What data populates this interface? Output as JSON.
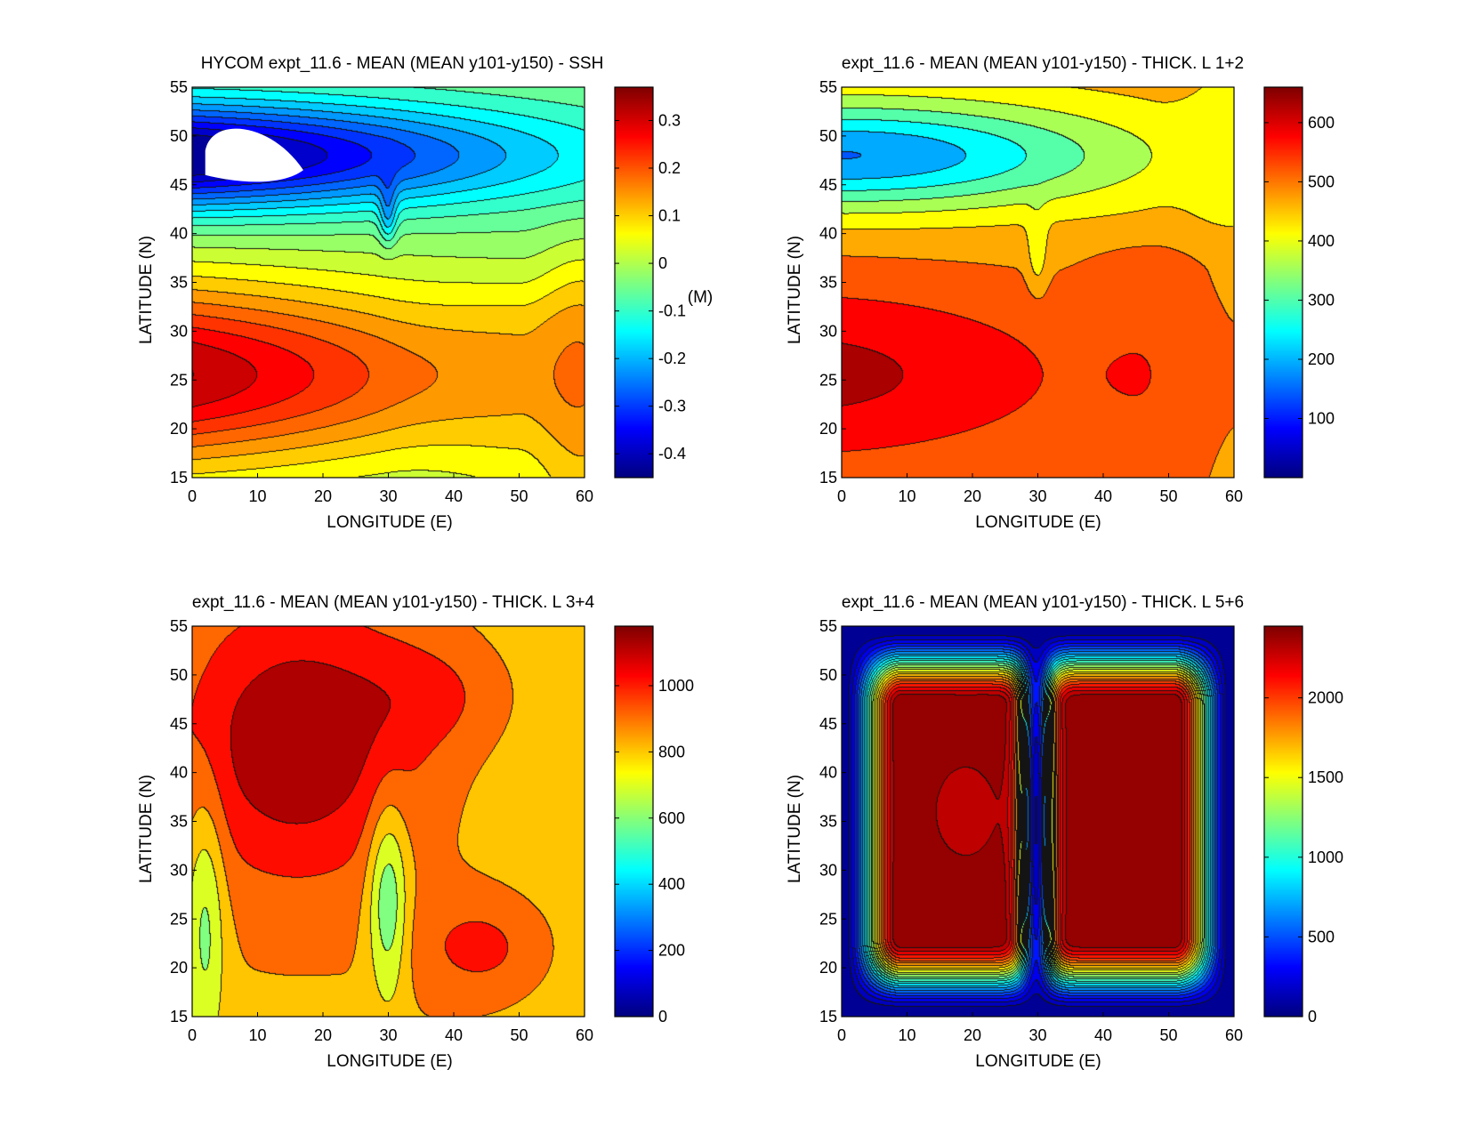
{
  "figure": {
    "background": "#ffffff"
  },
  "chart_data": [
    {
      "type": "heatmap",
      "title": "HYCOM expt_11.6 - MEAN (MEAN y101-y150) - SSH",
      "xlabel": "LONGITUDE (E)",
      "ylabel": "LATITUDE (N)",
      "xlim": [
        0,
        60
      ],
      "ylim": [
        15,
        55
      ],
      "xticks": [
        0,
        10,
        20,
        30,
        40,
        50,
        60
      ],
      "yticks": [
        15,
        20,
        25,
        30,
        35,
        40,
        45,
        50,
        55
      ],
      "field": "ssh",
      "colorbar": {
        "range": [
          -0.45,
          0.37
        ],
        "ticks": [
          -0.4,
          -0.3,
          -0.2,
          -0.1,
          0,
          0.1,
          0.2,
          0.3
        ],
        "tick_labels": [
          "-0.4",
          "-0.3",
          "-0.2",
          "-0.1",
          "0",
          "0.1",
          "0.2",
          "0.3"
        ],
        "unit": "(M)"
      },
      "colormap": "jet",
      "contour_levels": 20,
      "grid": false,
      "landmask_patch": true
    },
    {
      "type": "heatmap",
      "title": "expt_11.6 - MEAN (MEAN y101-y150) - THICK. L 1+2",
      "xlabel": "LONGITUDE (E)",
      "ylabel": "LATITUDE (N)",
      "xlim": [
        0,
        60
      ],
      "ylim": [
        15,
        55
      ],
      "xticks": [
        0,
        10,
        20,
        30,
        40,
        50,
        60
      ],
      "yticks": [
        15,
        20,
        25,
        30,
        35,
        40,
        45,
        50,
        55
      ],
      "field": "thick12",
      "colorbar": {
        "range": [
          0,
          660
        ],
        "ticks": [
          100,
          200,
          300,
          400,
          500,
          600
        ],
        "tick_labels": [
          "100",
          "200",
          "300",
          "400",
          "500",
          "600"
        ],
        "unit": ""
      },
      "colormap": "jet",
      "contour_levels": 12,
      "grid": false
    },
    {
      "type": "heatmap",
      "title": "expt_11.6 - MEAN (MEAN y101-y150) - THICK. L 3+4",
      "xlabel": "LONGITUDE (E)",
      "ylabel": "LATITUDE (N)",
      "xlim": [
        0,
        60
      ],
      "ylim": [
        15,
        55
      ],
      "xticks": [
        0,
        10,
        20,
        30,
        40,
        50,
        60
      ],
      "yticks": [
        15,
        20,
        25,
        30,
        35,
        40,
        45,
        50,
        55
      ],
      "field": "thick34",
      "colorbar": {
        "range": [
          0,
          1180
        ],
        "ticks": [
          0,
          200,
          400,
          600,
          800,
          1000
        ],
        "tick_labels": [
          "0",
          "200",
          "400",
          "600",
          "800",
          "1000"
        ],
        "unit": ""
      },
      "colormap": "jet",
      "contour_levels": 11,
      "grid": false
    },
    {
      "type": "heatmap",
      "title": "expt_11.6 - MEAN (MEAN y101-y150) - THICK. L 5+6",
      "xlabel": "LONGITUDE (E)",
      "ylabel": "LATITUDE (N)",
      "xlim": [
        0,
        60
      ],
      "ylim": [
        15,
        55
      ],
      "xticks": [
        0,
        10,
        20,
        30,
        40,
        50,
        60
      ],
      "yticks": [
        15,
        20,
        25,
        30,
        35,
        40,
        45,
        50,
        55
      ],
      "field": "thick56",
      "colorbar": {
        "range": [
          0,
          2450
        ],
        "ticks": [
          0,
          500,
          1000,
          1500,
          2000
        ],
        "tick_labels": [
          "0",
          "500",
          "1000",
          "1500",
          "2000"
        ],
        "unit": ""
      },
      "colormap": "jet",
      "contour_levels": 24,
      "grid": false
    }
  ]
}
